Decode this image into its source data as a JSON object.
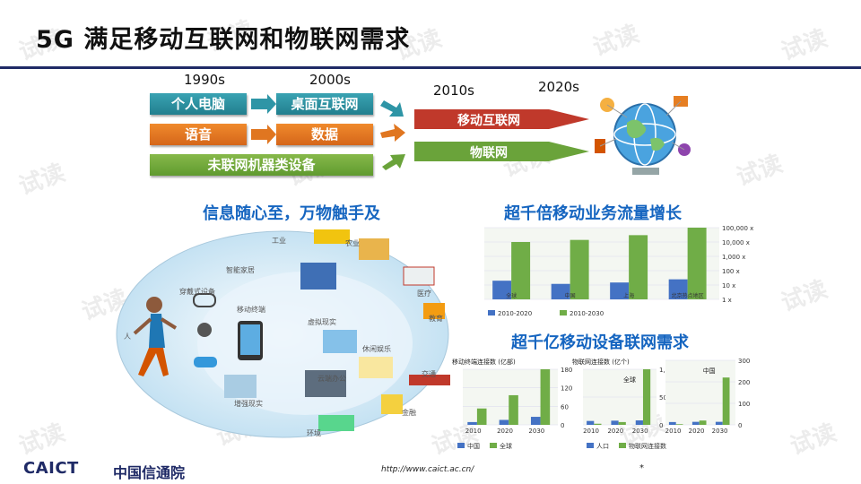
{
  "title": "5G 满足移动互联网和物联网需求",
  "timeline": {
    "years": [
      "1990s",
      "2000s",
      "2010s",
      "2020s"
    ],
    "row1": [
      "个人电脑",
      "桌面互联网"
    ],
    "row2": [
      "语音",
      "数据"
    ],
    "row3": "未联网机器类设备",
    "arrow_mobile": "移动互联网",
    "arrow_iot": "物联网"
  },
  "section_left_title": "信息随心至，万物触手及",
  "section_right1_title": "超千倍移动业务流量增长",
  "section_right2_title": "超千亿移动设备联网需求",
  "scene_labels": [
    "工业",
    "农业",
    "智能家居",
    "穿戴式设备",
    "移动终端",
    "医疗",
    "虚拟现实",
    "教育",
    "人",
    "休闲娱乐",
    "增强现实",
    "云端办公",
    "交通",
    "金融",
    "环境"
  ],
  "colors": {
    "blue": "#4472c4",
    "green": "#70ad47",
    "navy": "#1f2a66",
    "title_blue": "#1565c0"
  },
  "chart_data": [
    {
      "type": "bar",
      "categories": [
        "全球",
        "中国",
        "上海",
        "北京热点地区"
      ],
      "series": [
        {
          "name": "2010-2020",
          "values": [
            20,
            12,
            15,
            25
          ]
        },
        {
          "name": "2010-2030",
          "values": [
            10000,
            14000,
            30000,
            100000
          ]
        }
      ],
      "yscale": "log",
      "ytick_labels": [
        "1 x",
        "10 x",
        "100 x",
        "1,000 x",
        "10,000 x",
        "100,000 x"
      ],
      "legend": "bottom"
    },
    {
      "type": "bar",
      "title": "移动终端连接数 (亿部)",
      "categories": [
        "2010",
        "2020",
        "2030"
      ],
      "series": [
        {
          "name": "中国",
          "values": [
            9,
            16,
            26
          ]
        },
        {
          "name": "全球",
          "values": [
            53,
            96,
            180
          ]
        }
      ],
      "ylim": [
        0,
        180
      ],
      "yticks": [
        0,
        60,
        120,
        180
      ],
      "legend": "bottom"
    },
    {
      "type": "bar",
      "title": "物联网连接数 (亿个)",
      "categories": [
        "2010",
        "2020",
        "2030"
      ],
      "series": [
        {
          "name": "人口",
          "values": [
            70,
            75,
            80
          ]
        },
        {
          "name": "物联网连接数",
          "values": [
            20,
            50,
            1000
          ]
        }
      ],
      "bar_labels": [
        "全球"
      ],
      "ylim": [
        0,
        1000
      ],
      "yticks": [
        0,
        500,
        1000
      ],
      "ytick_labels": [
        "0",
        "500",
        "1,000"
      ],
      "legend": "bottom"
    },
    {
      "type": "bar",
      "categories": [
        "2010",
        "2020",
        "2030"
      ],
      "series": [
        {
          "name": "人口",
          "values": [
            13,
            14,
            14
          ]
        },
        {
          "name": "物联网连接数",
          "values": [
            3,
            20,
            220
          ]
        }
      ],
      "bar_labels": [
        "中国"
      ],
      "ylim": [
        0,
        300
      ],
      "yticks": [
        0,
        100,
        200,
        300
      ],
      "legend": "bottom"
    }
  ],
  "watermark": "试读",
  "footer_url": "http://www.caict.ac.cn/",
  "page_mark": "*",
  "logo": {
    "en": "CAICT",
    "cn": "中国信通院"
  }
}
